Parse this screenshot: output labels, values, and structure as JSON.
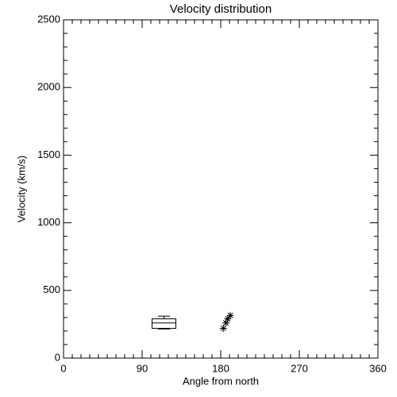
{
  "chart_data": {
    "type": "scatter",
    "title": "Velocity distribution",
    "x_label": "Angle from north",
    "y_label": "Velocity (km/s)",
    "x": [
      183,
      186,
      188,
      191
    ],
    "y": [
      220,
      260,
      290,
      315
    ],
    "box": {
      "x": 115,
      "min": 215,
      "q1": 220,
      "median": 260,
      "q3": 290,
      "max": 310
    },
    "color": "#000000",
    "xlim": [
      0,
      360
    ],
    "xticks": [
      0,
      90,
      180,
      270,
      360
    ],
    "ylim": [
      0,
      2500
    ],
    "yticks": [
      0,
      500,
      1000,
      1500,
      2000,
      2500
    ]
  }
}
